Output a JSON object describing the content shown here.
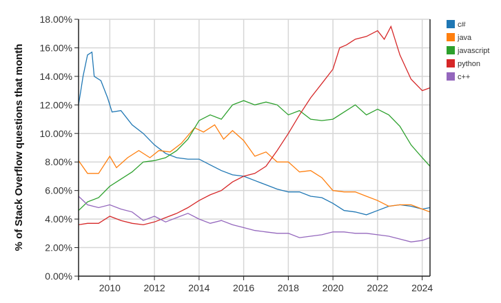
{
  "chart_data": {
    "type": "line",
    "title": "",
    "xlabel": "",
    "ylabel": "% of Stack Overflow questions that month",
    "xlim": [
      2008.6,
      2024.35
    ],
    "ylim": [
      0,
      18
    ],
    "x_ticks": [
      2010,
      2012,
      2014,
      2016,
      2018,
      2020,
      2022,
      2024
    ],
    "x_tick_labels": [
      "2010",
      "2012",
      "2014",
      "2016",
      "2018",
      "2020",
      "2022",
      "2024"
    ],
    "y_ticks": [
      0,
      2,
      4,
      6,
      8,
      10,
      12,
      14,
      16,
      18
    ],
    "y_tick_labels": [
      "0.00%",
      "2.00%",
      "4.00%",
      "6.00%",
      "8.00%",
      "10.00%",
      "12.00%",
      "14.00%",
      "16.00%",
      "18.00%"
    ],
    "grid": true,
    "legend_position": "top-right",
    "series": [
      {
        "name": "c#",
        "color": "#1f77b4",
        "points": [
          [
            2008.6,
            12
          ],
          [
            2008.8,
            14
          ],
          [
            2009.0,
            15.5
          ],
          [
            2009.2,
            15.7
          ],
          [
            2009.3,
            14
          ],
          [
            2009.6,
            13.7
          ],
          [
            2009.9,
            12.5
          ],
          [
            2010.1,
            11.5
          ],
          [
            2010.5,
            11.6
          ],
          [
            2011,
            10.6
          ],
          [
            2011.5,
            10
          ],
          [
            2012,
            9.2
          ],
          [
            2012.5,
            8.6
          ],
          [
            2013,
            8.3
          ],
          [
            2013.5,
            8.2
          ],
          [
            2014,
            8.2
          ],
          [
            2014.5,
            7.8
          ],
          [
            2015,
            7.4
          ],
          [
            2015.5,
            7.1
          ],
          [
            2016,
            7.0
          ],
          [
            2016.5,
            6.7
          ],
          [
            2017,
            6.4
          ],
          [
            2017.5,
            6.1
          ],
          [
            2018,
            5.9
          ],
          [
            2018.5,
            5.9
          ],
          [
            2019,
            5.6
          ],
          [
            2019.5,
            5.5
          ],
          [
            2020,
            5.1
          ],
          [
            2020.5,
            4.6
          ],
          [
            2021,
            4.5
          ],
          [
            2021.5,
            4.3
          ],
          [
            2022,
            4.6
          ],
          [
            2022.5,
            4.9
          ],
          [
            2023,
            5.0
          ],
          [
            2023.5,
            4.9
          ],
          [
            2024,
            4.7
          ],
          [
            2024.35,
            4.8
          ]
        ]
      },
      {
        "name": "java",
        "color": "#ff7f0e",
        "points": [
          [
            2008.6,
            8.1
          ],
          [
            2009,
            7.2
          ],
          [
            2009.5,
            7.2
          ],
          [
            2010,
            8.4
          ],
          [
            2010.3,
            7.6
          ],
          [
            2010.8,
            8.3
          ],
          [
            2011.3,
            8.8
          ],
          [
            2011.8,
            8.3
          ],
          [
            2012.2,
            8.8
          ],
          [
            2012.7,
            8.7
          ],
          [
            2013.2,
            9.3
          ],
          [
            2013.8,
            10.4
          ],
          [
            2014.2,
            10.1
          ],
          [
            2014.7,
            10.6
          ],
          [
            2015.1,
            9.6
          ],
          [
            2015.5,
            10.2
          ],
          [
            2016,
            9.5
          ],
          [
            2016.5,
            8.4
          ],
          [
            2017,
            8.7
          ],
          [
            2017.5,
            8.0
          ],
          [
            2018,
            8.0
          ],
          [
            2018.5,
            7.3
          ],
          [
            2019,
            7.4
          ],
          [
            2019.5,
            6.9
          ],
          [
            2020,
            6.0
          ],
          [
            2020.5,
            5.9
          ],
          [
            2021,
            5.9
          ],
          [
            2021.5,
            5.6
          ],
          [
            2022,
            5.3
          ],
          [
            2022.5,
            4.9
          ],
          [
            2023,
            5.0
          ],
          [
            2023.5,
            5.0
          ],
          [
            2024,
            4.7
          ],
          [
            2024.35,
            4.5
          ]
        ]
      },
      {
        "name": "javascript",
        "color": "#2ca02c",
        "points": [
          [
            2008.6,
            4.6
          ],
          [
            2009,
            5.2
          ],
          [
            2009.5,
            5.5
          ],
          [
            2010,
            6.3
          ],
          [
            2010.5,
            6.8
          ],
          [
            2011,
            7.3
          ],
          [
            2011.5,
            8.0
          ],
          [
            2012,
            8.1
          ],
          [
            2012.5,
            8.3
          ],
          [
            2013,
            8.8
          ],
          [
            2013.5,
            9.6
          ],
          [
            2014,
            10.9
          ],
          [
            2014.5,
            11.3
          ],
          [
            2015,
            11.0
          ],
          [
            2015.5,
            12.0
          ],
          [
            2016,
            12.3
          ],
          [
            2016.5,
            12.0
          ],
          [
            2017,
            12.2
          ],
          [
            2017.5,
            12.0
          ],
          [
            2018,
            11.3
          ],
          [
            2018.5,
            11.6
          ],
          [
            2019,
            11.0
          ],
          [
            2019.5,
            10.9
          ],
          [
            2020,
            11.0
          ],
          [
            2020.5,
            11.5
          ],
          [
            2021,
            12.0
          ],
          [
            2021.5,
            11.3
          ],
          [
            2022,
            11.7
          ],
          [
            2022.5,
            11.3
          ],
          [
            2023,
            10.5
          ],
          [
            2023.5,
            9.2
          ],
          [
            2024,
            8.3
          ],
          [
            2024.35,
            7.7
          ]
        ]
      },
      {
        "name": "python",
        "color": "#d62728",
        "points": [
          [
            2008.6,
            3.6
          ],
          [
            2009,
            3.7
          ],
          [
            2009.5,
            3.7
          ],
          [
            2010,
            4.2
          ],
          [
            2010.5,
            3.9
          ],
          [
            2011,
            3.7
          ],
          [
            2011.5,
            3.6
          ],
          [
            2012,
            3.8
          ],
          [
            2012.5,
            4.1
          ],
          [
            2013,
            4.4
          ],
          [
            2013.5,
            4.8
          ],
          [
            2014,
            5.3
          ],
          [
            2014.5,
            5.7
          ],
          [
            2015,
            6.0
          ],
          [
            2015.5,
            6.6
          ],
          [
            2016,
            7.0
          ],
          [
            2016.5,
            7.2
          ],
          [
            2017,
            7.7
          ],
          [
            2017.5,
            8.8
          ],
          [
            2018,
            10.0
          ],
          [
            2018.5,
            11.3
          ],
          [
            2019,
            12.5
          ],
          [
            2019.5,
            13.5
          ],
          [
            2020,
            14.5
          ],
          [
            2020.3,
            16
          ],
          [
            2020.6,
            16.2
          ],
          [
            2021,
            16.6
          ],
          [
            2021.5,
            16.8
          ],
          [
            2022,
            17.2
          ],
          [
            2022.3,
            16.6
          ],
          [
            2022.6,
            17.5
          ],
          [
            2023,
            15.5
          ],
          [
            2023.5,
            13.8
          ],
          [
            2024,
            13.0
          ],
          [
            2024.35,
            13.2
          ]
        ]
      },
      {
        "name": "c++",
        "color": "#9467bd",
        "points": [
          [
            2008.6,
            5.6
          ],
          [
            2009,
            5.0
          ],
          [
            2009.5,
            4.8
          ],
          [
            2010,
            5.0
          ],
          [
            2010.5,
            4.7
          ],
          [
            2011,
            4.5
          ],
          [
            2011.5,
            3.9
          ],
          [
            2012,
            4.2
          ],
          [
            2012.5,
            3.8
          ],
          [
            2013,
            4.1
          ],
          [
            2013.5,
            4.4
          ],
          [
            2014,
            4.0
          ],
          [
            2014.5,
            3.7
          ],
          [
            2015,
            3.9
          ],
          [
            2015.5,
            3.6
          ],
          [
            2016,
            3.4
          ],
          [
            2016.5,
            3.2
          ],
          [
            2017,
            3.1
          ],
          [
            2017.5,
            3.0
          ],
          [
            2018,
            3.0
          ],
          [
            2018.5,
            2.7
          ],
          [
            2019,
            2.8
          ],
          [
            2019.5,
            2.9
          ],
          [
            2020,
            3.1
          ],
          [
            2020.5,
            3.1
          ],
          [
            2021,
            3.0
          ],
          [
            2021.5,
            3.0
          ],
          [
            2022,
            2.9
          ],
          [
            2022.5,
            2.8
          ],
          [
            2023,
            2.6
          ],
          [
            2023.5,
            2.4
          ],
          [
            2024,
            2.5
          ],
          [
            2024.35,
            2.7
          ]
        ]
      }
    ]
  }
}
